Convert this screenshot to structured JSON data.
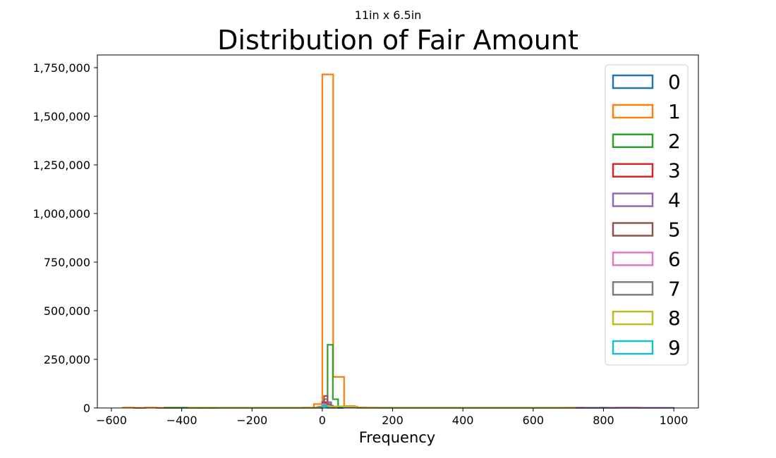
{
  "suptitle": "11in x 6.5in",
  "chart_data": {
    "type": "histogram",
    "title": "Distribution of Fair Amount",
    "xlabel": "Frequency",
    "ylabel": "",
    "xlim": [
      -640,
      1070
    ],
    "ylim": [
      0,
      1750000
    ],
    "x_ticks": [
      -600,
      -400,
      -200,
      0,
      200,
      400,
      600,
      800,
      1000
    ],
    "x_tick_labels": [
      "−600",
      "−400",
      "−200",
      "0",
      "200",
      "400",
      "600",
      "800",
      "1000"
    ],
    "y_ticks": [
      0,
      250000,
      500000,
      750000,
      1000000,
      1250000,
      1500000,
      1750000
    ],
    "y_tick_labels": [
      "0",
      "250,000",
      "500,000",
      "750,000",
      "1,000,000",
      "1,250,000",
      "1,500,000",
      "1,750,000"
    ],
    "grid": false,
    "legend_position": "upper right",
    "histtype": "step",
    "series": [
      {
        "name": "0",
        "color": "#1f77b4",
        "bin_edges": [
          -30,
          -15,
          0,
          15,
          30,
          45,
          60
        ],
        "counts": [
          1000,
          4000,
          20000,
          12000,
          3000,
          500
        ]
      },
      {
        "name": "1",
        "color": "#ff7f0e",
        "bin_edges": [
          -568,
          -536,
          -504,
          -472,
          -440,
          -408,
          -376,
          -344,
          -312,
          -280,
          -248,
          -216,
          -184,
          -152,
          -120,
          -88,
          -56,
          -24,
          0,
          31,
          62,
          93,
          124,
          155,
          186,
          217,
          248,
          279,
          310,
          341,
          372,
          403,
          434,
          465,
          496,
          527,
          558,
          589,
          620,
          651,
          682,
          713,
          744,
          775,
          806,
          837,
          868,
          899
        ],
        "counts": [
          2000,
          500,
          2000,
          500,
          500,
          1000,
          500,
          1000,
          500,
          500,
          500,
          500,
          500,
          500,
          1000,
          1000,
          2000,
          20000,
          1715000,
          160000,
          10000,
          3000,
          2000,
          1500,
          1000,
          1000,
          1000,
          1000,
          1000,
          1000,
          1000,
          1000,
          1000,
          1000,
          1000,
          500,
          500,
          500,
          500,
          500,
          2000,
          2000,
          500,
          500,
          500,
          2000,
          2000
        ]
      },
      {
        "name": "2",
        "color": "#2ca02c",
        "bin_edges": [
          -450,
          -350,
          -250,
          -150,
          -50,
          0,
          15,
          30,
          45,
          60,
          100,
          200,
          300,
          400,
          500,
          620,
          700,
          790,
          810
        ],
        "counts": [
          1500,
          1000,
          1000,
          1000,
          1000,
          20000,
          325000,
          45000,
          8000,
          2000,
          1000,
          1000,
          1000,
          1000,
          1000,
          1000,
          500,
          2000
        ]
      },
      {
        "name": "3",
        "color": "#d62728",
        "bin_edges": [
          -20,
          -10,
          0,
          10,
          20,
          30,
          40
        ],
        "counts": [
          2000,
          6000,
          30000,
          14000,
          3000,
          1000
        ]
      },
      {
        "name": "4",
        "color": "#9467bd",
        "bin_edges": [
          -300,
          -200,
          -100,
          -50,
          0,
          5,
          15,
          25,
          60,
          200,
          400,
          600,
          800,
          1000
        ],
        "counts": [
          1000,
          1000,
          1000,
          2000,
          15000,
          45000,
          30000,
          8000,
          2000,
          1500,
          1500,
          1000,
          1000
        ]
      },
      {
        "name": "5",
        "color": "#8c564b",
        "bin_edges": [
          -10,
          0,
          5,
          15,
          25,
          40
        ],
        "counts": [
          5000,
          30000,
          62000,
          20000,
          4000
        ]
      },
      {
        "name": "6",
        "color": "#e377c2",
        "bin_edges": [
          -10,
          0,
          10,
          20,
          30,
          40
        ],
        "counts": [
          3000,
          18000,
          12000,
          3000,
          1000
        ]
      },
      {
        "name": "7",
        "color": "#7f7f7f",
        "bin_edges": [
          -10,
          0,
          10,
          20,
          30
        ],
        "counts": [
          2000,
          10000,
          6000,
          1500
        ]
      },
      {
        "name": "8",
        "color": "#bcbd22",
        "bin_edges": [
          -380,
          -300,
          -200,
          -100,
          0,
          100,
          200,
          300,
          400,
          500,
          600,
          720
        ],
        "counts": [
          2000,
          1000,
          1000,
          1000,
          8000,
          1000,
          1000,
          1000,
          1000,
          1000,
          1000
        ]
      },
      {
        "name": "9",
        "color": "#17becf",
        "bin_edges": [
          -5,
          0,
          5,
          10,
          15,
          20
        ],
        "counts": [
          1000,
          8000,
          14000,
          5000,
          1000
        ]
      }
    ]
  }
}
